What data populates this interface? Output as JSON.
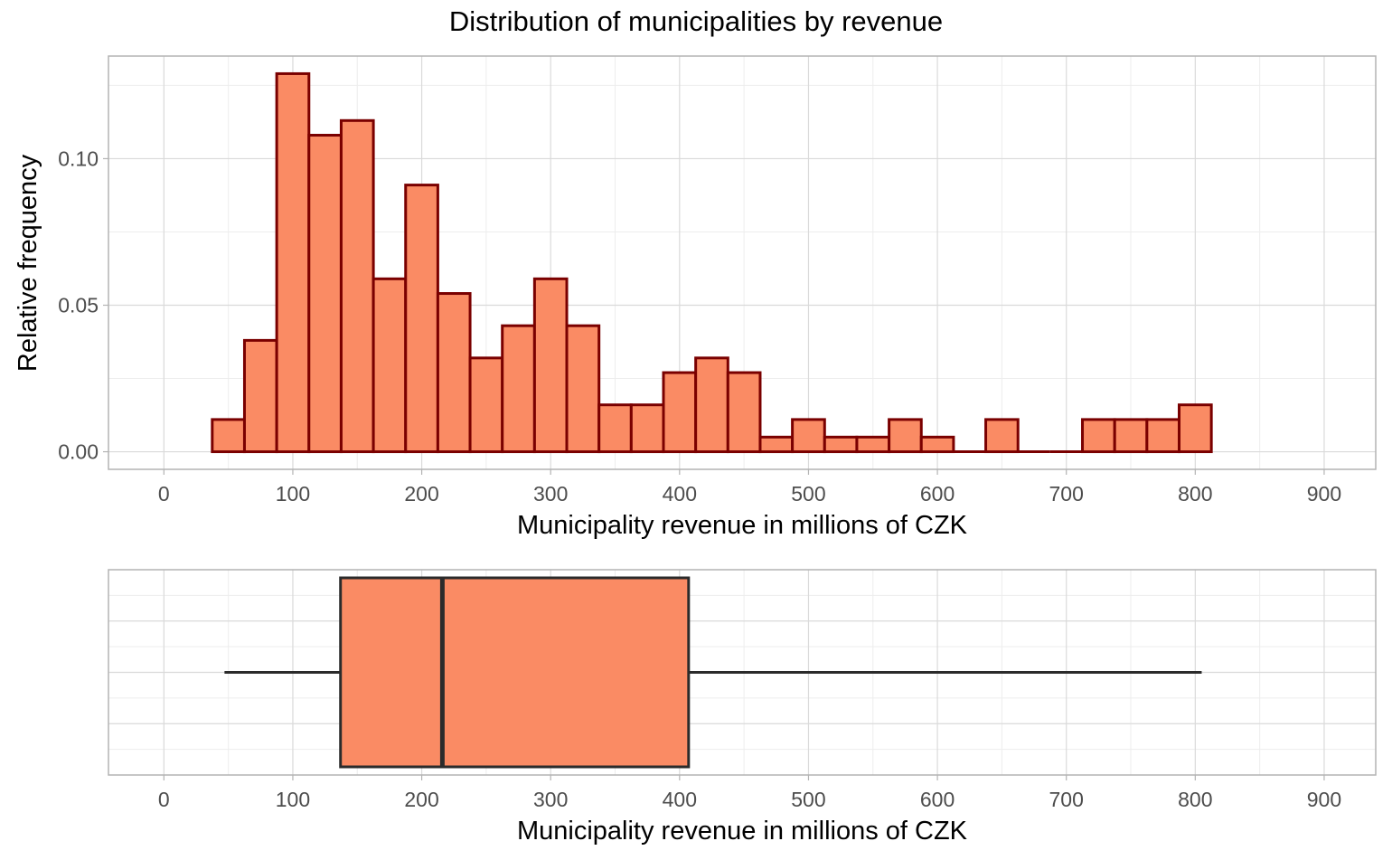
{
  "figure": {
    "title": "Distribution of municipalities by revenue"
  },
  "colors": {
    "bar_fill": "#FA8B64",
    "bar_stroke": "#7A0000",
    "box_fill": "#FA8B64",
    "box_stroke": "#2B2B2B",
    "grid_major": "#DADADA",
    "grid_minor": "#EDEDED",
    "panel_border": "#B3B3B3",
    "tick_text": "#4D4D4D",
    "text": "#000000"
  },
  "chart_data": [
    {
      "type": "bar",
      "subtype": "histogram",
      "xlabel": "Municipality revenue in millions of CZK",
      "ylabel": "Relative frequency",
      "xlim": [
        -43,
        940
      ],
      "ylim": [
        -0.006,
        0.135
      ],
      "x_ticks": [
        0,
        100,
        200,
        300,
        400,
        500,
        600,
        700,
        800,
        900
      ],
      "x_tick_labels": [
        "0",
        "100",
        "200",
        "300",
        "400",
        "500",
        "600",
        "700",
        "800",
        "900"
      ],
      "y_ticks": [
        0,
        0.05,
        0.1
      ],
      "y_tick_labels": [
        "0.00",
        "0.05",
        "0.10"
      ],
      "grid": true,
      "bin_width": 25,
      "bin_starts": [
        37.5,
        62.5,
        87.5,
        112.5,
        137.5,
        162.5,
        187.5,
        212.5,
        237.5,
        262.5,
        287.5,
        312.5,
        337.5,
        362.5,
        387.5,
        412.5,
        437.5,
        462.5,
        487.5,
        512.5,
        537.5,
        562.5,
        587.5,
        612.5,
        637.5,
        662.5,
        687.5,
        712.5,
        737.5,
        762.5,
        787.5
      ],
      "values": [
        0.011,
        0.038,
        0.129,
        0.108,
        0.113,
        0.059,
        0.091,
        0.054,
        0.032,
        0.043,
        0.059,
        0.043,
        0.016,
        0.016,
        0.027,
        0.032,
        0.027,
        0.005,
        0.011,
        0.005,
        0.005,
        0.011,
        0.005,
        0.0,
        0.011,
        0.0,
        0.0,
        0.011,
        0.011,
        0.011,
        0.016
      ]
    },
    {
      "type": "boxplot",
      "orientation": "horizontal",
      "xlabel": "Municipality revenue in millions of CZK",
      "xlim": [
        -43,
        940
      ],
      "x_ticks": [
        0,
        100,
        200,
        300,
        400,
        500,
        600,
        700,
        800,
        900
      ],
      "x_tick_labels": [
        "0",
        "100",
        "200",
        "300",
        "400",
        "500",
        "600",
        "700",
        "800",
        "900"
      ],
      "grid": true,
      "whisker_low": 47,
      "q1": 137,
      "median": 216,
      "q3": 407,
      "whisker_high": 805
    }
  ]
}
